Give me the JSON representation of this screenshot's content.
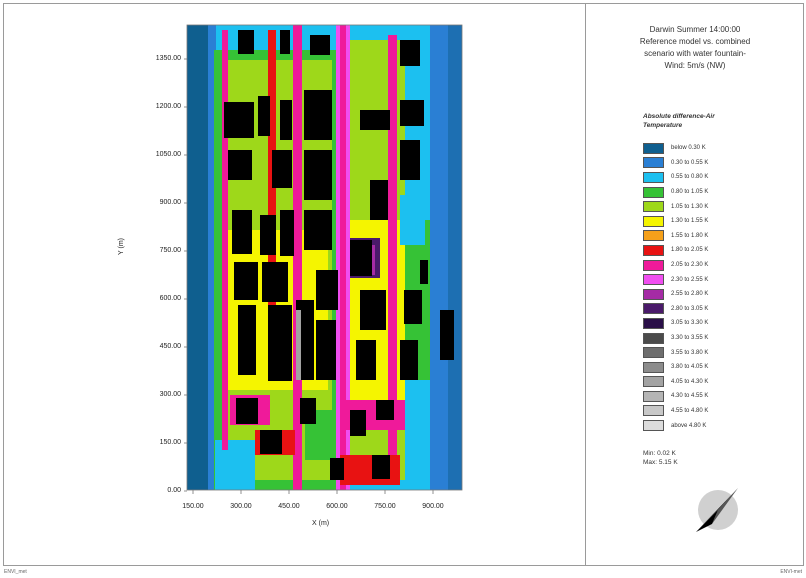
{
  "title_lines": [
    "Darwin Summer 14:00:00",
    "Reference model vs. combined",
    "scenario with water fountain-",
    "Wind: 5m/s (NW)"
  ],
  "legend": {
    "title_lines": [
      "Absolute difference-Air",
      "Temperature"
    ],
    "items": [
      {
        "label": "below 0.30 K",
        "color": "#0f5f8f"
      },
      {
        "label": "0.30 to 0.55 K",
        "color": "#2a7fd4"
      },
      {
        "label": "0.55 to 0.80 K",
        "color": "#1cc0f0"
      },
      {
        "label": "0.80 to 1.05 K",
        "color": "#36c236"
      },
      {
        "label": "1.05 to 1.30 K",
        "color": "#9ed81a"
      },
      {
        "label": "1.30 to 1.55 K",
        "color": "#f5f500"
      },
      {
        "label": "1.55 to 1.80 K",
        "color": "#f5a01a"
      },
      {
        "label": "1.80 to 2.05 K",
        "color": "#e81212"
      },
      {
        "label": "2.05 to 2.30 K",
        "color": "#ef1a9a"
      },
      {
        "label": "2.30 to 2.55 K",
        "color": "#f04ef0"
      },
      {
        "label": "2.55 to 2.80 K",
        "color": "#a52ba5"
      },
      {
        "label": "2.80 to 3.05 K",
        "color": "#4a1a6a"
      },
      {
        "label": "3.05 to 3.30 K",
        "color": "#2a0f48"
      },
      {
        "label": "3.30 to 3.55 K",
        "color": "#4b4b4b"
      },
      {
        "label": "3.55 to 3.80 K",
        "color": "#6e6e6e"
      },
      {
        "label": "3.80 to 4.05 K",
        "color": "#8c8c8c"
      },
      {
        "label": "4.05 to 4.30 K",
        "color": "#a3a3a3"
      },
      {
        "label": "4.30 to 4.55 K",
        "color": "#b5b5b5"
      },
      {
        "label": "4.55 to 4.80 K",
        "color": "#c8c8c8"
      },
      {
        "label": "above 4.80 K",
        "color": "#dcdcdc"
      }
    ]
  },
  "min_label": "Min: 0.02 K",
  "max_label": "Max: 5.15 K",
  "axes": {
    "ylabel": "Y (m)",
    "xlabel": "X (m)",
    "yticks": [
      "1350.00",
      "1200.00",
      "1050.00",
      "900.00",
      "750.00",
      "600.00",
      "450.00",
      "300.00",
      "150.00",
      "0.00"
    ],
    "xticks": [
      "150.00",
      "300.00",
      "450.00",
      "600.00",
      "750.00",
      "900.00"
    ]
  },
  "footer": {
    "left": "ENVI_met",
    "right": "ENVI-met"
  }
}
